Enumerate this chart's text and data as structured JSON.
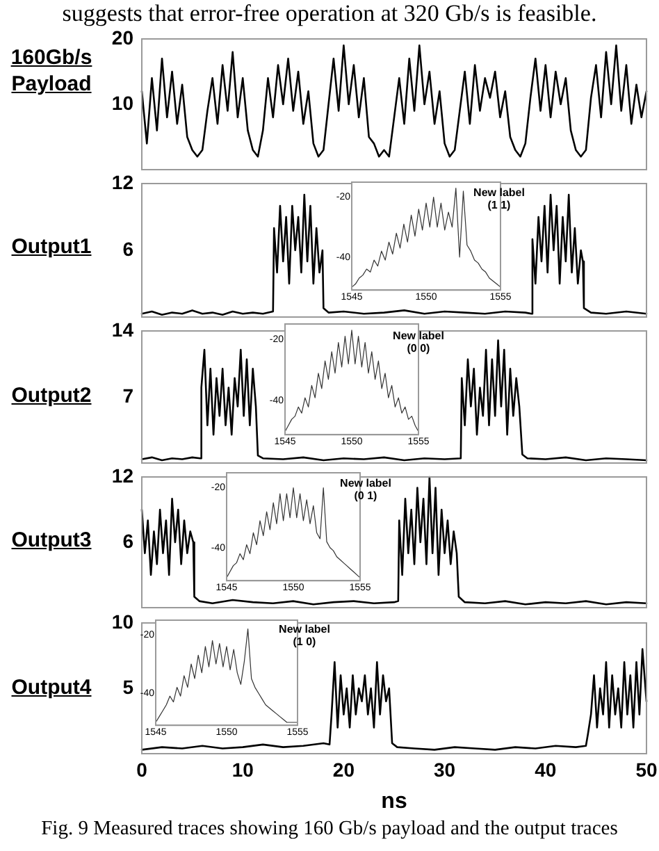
{
  "chart_data": [
    {
      "type": "line",
      "ylabel": "160Gb/s Payload",
      "annotations": [
        "suggests that error-free operation at 320 Gb/s is feasible."
      ],
      "xlim": [
        0,
        50
      ],
      "ylim": [
        0,
        20
      ],
      "yticks": [
        10,
        20
      ],
      "tick_labels": "y",
      "grid": false,
      "legend": false,
      "series": [
        {
          "color": "#000000",
          "x": [
            0,
            0.5,
            1,
            1.5,
            2,
            2.5,
            3,
            3.5,
            4,
            4.5,
            5,
            5.5,
            6,
            6.5,
            7,
            7.5,
            8,
            8.5,
            9,
            9.5,
            10,
            10.5,
            11,
            11.5,
            12,
            12.5,
            13,
            13.5,
            14,
            14.5,
            15,
            15.5,
            16,
            16.5,
            17,
            17.5,
            18,
            18.5,
            19,
            19.5,
            20,
            20.5,
            21,
            21.5,
            22,
            22.5,
            23,
            23.5,
            24,
            24.5,
            25,
            25.5,
            26,
            26.5,
            27,
            27.5,
            28,
            28.5,
            29,
            29.5,
            30,
            30.5,
            31,
            31.5,
            32,
            32.5,
            33,
            33.5,
            34,
            34.5,
            35,
            35.5,
            36,
            36.5,
            37,
            37.5,
            38,
            38.5,
            39,
            39.5,
            40,
            40.5,
            41,
            41.5,
            42,
            42.5,
            43,
            43.5,
            44,
            44.5,
            45,
            45.5,
            46,
            46.5,
            47,
            47.5,
            48,
            48.5,
            49,
            49.5,
            50
          ],
          "values": [
            12,
            4,
            14,
            6,
            17,
            8,
            15,
            7,
            13,
            5,
            3,
            2,
            3,
            9,
            14,
            7,
            16,
            9,
            18,
            8,
            14,
            6,
            3,
            2,
            6,
            14,
            8,
            16,
            10,
            17,
            9,
            15,
            7,
            12,
            4,
            2,
            3,
            10,
            17,
            9,
            19,
            10,
            16,
            8,
            14,
            5,
            4,
            2,
            3,
            2,
            8,
            14,
            7,
            17,
            9,
            19,
            10,
            15,
            7,
            12,
            4,
            2,
            3,
            9,
            15,
            7,
            16,
            9,
            14,
            11,
            15,
            8,
            12,
            5,
            3,
            2,
            4,
            11,
            17,
            9,
            16,
            8,
            15,
            10,
            14,
            6,
            3,
            2,
            3,
            11,
            16,
            8,
            18,
            10,
            19,
            9,
            16,
            7,
            13,
            8,
            12
          ]
        }
      ]
    },
    {
      "type": "line",
      "ylabel": "Output1",
      "xlim": [
        0,
        50
      ],
      "ylim": [
        0,
        12
      ],
      "yticks": [
        6,
        12
      ],
      "tick_labels": "y",
      "grid": false,
      "legend": false,
      "series": [
        {
          "color": "#000000",
          "x": [
            0,
            1,
            2,
            3,
            4,
            5,
            6,
            7,
            8,
            9,
            10,
            11,
            12,
            13,
            13.1,
            13.4,
            13.7,
            14,
            14.3,
            14.6,
            14.9,
            15.2,
            15.5,
            15.8,
            16.1,
            16.4,
            16.7,
            17,
            17.3,
            17.6,
            17.9,
            18,
            18.5,
            20,
            22,
            24,
            26,
            28,
            30,
            32,
            34,
            36,
            38,
            38.6,
            38.7,
            39,
            39.3,
            39.6,
            39.9,
            40.2,
            40.5,
            40.8,
            41.1,
            41.4,
            41.7,
            42,
            42.3,
            42.6,
            42.9,
            43.2,
            43.5,
            43.7,
            43.8,
            44.5,
            46,
            48,
            50
          ],
          "values": [
            0.3,
            0.5,
            0.2,
            0.4,
            0.3,
            0.6,
            0.3,
            0.4,
            0.2,
            0.5,
            0.3,
            0.4,
            0.3,
            0.5,
            8,
            4,
            10,
            5,
            9,
            3,
            10,
            6,
            9,
            4,
            11,
            5,
            10,
            3,
            8,
            4,
            6,
            0.8,
            0.4,
            0.5,
            0.3,
            0.4,
            0.6,
            0.3,
            0.5,
            0.4,
            0.3,
            0.5,
            0.4,
            0.3,
            7,
            3,
            9,
            5,
            10,
            4,
            11,
            6,
            10,
            3,
            9,
            5,
            11,
            4,
            8,
            3,
            6,
            5,
            0.8,
            0.4,
            0.3,
            0.5,
            0.3
          ]
        }
      ]
    },
    {
      "type": "line",
      "annotations": [
        "New label (1 1)"
      ],
      "xlim": [
        1545,
        1555
      ],
      "xticks": [
        1545,
        1550,
        1555
      ],
      "ylim": [
        -51,
        -15
      ],
      "yticks": [
        -20,
        -40
      ],
      "grid": false,
      "legend": false,
      "x": [
        1545,
        1545.25,
        1545.5,
        1545.75,
        1546,
        1546.25,
        1546.5,
        1546.75,
        1547,
        1547.25,
        1547.5,
        1547.75,
        1548,
        1548.25,
        1548.5,
        1548.75,
        1549,
        1549.25,
        1549.5,
        1549.75,
        1550,
        1550.25,
        1550.5,
        1550.75,
        1551,
        1551.25,
        1551.5,
        1551.75,
        1552,
        1552.25,
        1552.5,
        1552.75,
        1553,
        1553.25,
        1553.5,
        1553.75,
        1554,
        1554.25,
        1554.5,
        1554.75,
        1555
      ],
      "series": [
        {
          "color": "#333333",
          "values": [
            -50,
            -49,
            -47,
            -46,
            -44,
            -45,
            -41,
            -43,
            -38,
            -41,
            -35,
            -39,
            -32,
            -37,
            -29,
            -35,
            -26,
            -33,
            -24,
            -31,
            -22,
            -30,
            -20,
            -30,
            -22,
            -31,
            -25,
            -30,
            -17,
            -40,
            -18,
            -36,
            -38,
            -41,
            -42,
            -44,
            -45,
            -47,
            -48,
            -49,
            -50
          ]
        }
      ]
    },
    {
      "type": "line",
      "ylabel": "Output2",
      "xlim": [
        0,
        50
      ],
      "ylim": [
        0,
        14
      ],
      "yticks": [
        7,
        14
      ],
      "tick_labels": "y",
      "grid": false,
      "legend": false,
      "series": [
        {
          "color": "#000000",
          "x": [
            0,
            1,
            2,
            3,
            4,
            5,
            5.8,
            5.9,
            6.2,
            6.5,
            6.8,
            7.1,
            7.4,
            7.7,
            8,
            8.3,
            8.6,
            8.9,
            9.2,
            9.5,
            9.8,
            10.1,
            10.4,
            10.7,
            11,
            11.3,
            11.5,
            12,
            14,
            16,
            18,
            20,
            22,
            24,
            26,
            28,
            30,
            31.6,
            31.7,
            32,
            32.3,
            32.6,
            32.9,
            33.2,
            33.5,
            33.8,
            34.1,
            34.4,
            34.7,
            35,
            35.3,
            35.6,
            35.9,
            36.2,
            36.5,
            36.8,
            37.1,
            37.4,
            37.7,
            38.2,
            40,
            42,
            44,
            46,
            48,
            50
          ],
          "values": [
            0.4,
            0.6,
            0.3,
            0.5,
            0.4,
            0.6,
            0.5,
            8,
            12,
            4,
            10,
            3,
            9,
            5,
            10,
            4,
            8,
            3,
            9,
            6,
            12,
            5,
            11,
            4,
            10,
            6,
            0.8,
            0.5,
            0.4,
            0.6,
            0.3,
            0.5,
            0.4,
            0.6,
            0.3,
            0.5,
            0.4,
            0.5,
            9,
            4,
            11,
            6,
            10,
            3,
            8,
            5,
            12,
            4,
            11,
            5,
            13,
            6,
            12,
            3,
            10,
            5,
            9,
            6,
            0.9,
            0.5,
            0.4,
            0.6,
            0.3,
            0.5,
            0.4,
            0.3
          ]
        }
      ]
    },
    {
      "type": "line",
      "annotations": [
        "New label (0 0)"
      ],
      "xlim": [
        1545,
        1555
      ],
      "xticks": [
        1545,
        1550,
        1555
      ],
      "ylim": [
        -51,
        -15
      ],
      "yticks": [
        -20,
        -40
      ],
      "grid": false,
      "legend": false,
      "x": [
        1545,
        1545.25,
        1545.5,
        1545.75,
        1546,
        1546.25,
        1546.5,
        1546.75,
        1547,
        1547.25,
        1547.5,
        1547.75,
        1548,
        1548.25,
        1548.5,
        1548.75,
        1549,
        1549.25,
        1549.5,
        1549.75,
        1550,
        1550.25,
        1550.5,
        1550.75,
        1551,
        1551.25,
        1551.5,
        1551.75,
        1552,
        1552.25,
        1552.5,
        1552.75,
        1553,
        1553.25,
        1553.5,
        1553.75,
        1554,
        1554.25,
        1554.5,
        1554.75,
        1555
      ],
      "series": [
        {
          "color": "#333333",
          "values": [
            -50,
            -48,
            -46,
            -45,
            -42,
            -44,
            -39,
            -42,
            -35,
            -39,
            -31,
            -36,
            -27,
            -33,
            -24,
            -31,
            -21,
            -29,
            -19,
            -28,
            -17,
            -28,
            -19,
            -29,
            -21,
            -31,
            -24,
            -33,
            -27,
            -36,
            -31,
            -39,
            -35,
            -42,
            -39,
            -44,
            -42,
            -46,
            -45,
            -48,
            -50
          ]
        }
      ]
    },
    {
      "type": "line",
      "ylabel": "Output3",
      "xlim": [
        0,
        50
      ],
      "ylim": [
        0,
        12
      ],
      "yticks": [
        6,
        12
      ],
      "tick_labels": "y",
      "grid": false,
      "legend": false,
      "series": [
        {
          "color": "#000000",
          "x": [
            0,
            0.3,
            0.6,
            0.9,
            1.2,
            1.5,
            1.8,
            2.1,
            2.4,
            2.7,
            3,
            3.3,
            3.6,
            3.9,
            4.2,
            4.5,
            4.8,
            5.1,
            5.2,
            5.7,
            7,
            9,
            11,
            13,
            15,
            17,
            19,
            21,
            23,
            25,
            25.4,
            25.5,
            25.8,
            26.1,
            26.4,
            26.7,
            27,
            27.3,
            27.6,
            27.9,
            28.2,
            28.5,
            28.8,
            29.1,
            29.4,
            29.7,
            30,
            30.3,
            30.6,
            30.9,
            31.2,
            31.4,
            32,
            34,
            36,
            38,
            40,
            42,
            44,
            46,
            48,
            50
          ],
          "values": [
            9,
            5,
            8,
            3,
            7,
            4,
            9,
            5,
            8,
            3,
            10,
            6,
            9,
            4,
            8,
            5,
            7,
            6,
            1,
            0.6,
            0.4,
            0.7,
            0.5,
            0.4,
            0.6,
            0.3,
            0.5,
            0.6,
            0.4,
            0.5,
            0.6,
            8,
            3,
            10,
            5,
            9,
            4,
            11,
            6,
            10,
            4,
            12,
            5,
            11,
            3,
            9,
            5,
            8,
            4,
            7,
            5,
            1,
            0.5,
            0.4,
            0.6,
            0.3,
            0.5,
            0.4,
            0.6,
            0.3,
            0.5,
            0.4
          ]
        }
      ]
    },
    {
      "type": "line",
      "annotations": [
        "New label (0 1)"
      ],
      "xlim": [
        1545,
        1555
      ],
      "xticks": [
        1545,
        1550,
        1555
      ],
      "ylim": [
        -51,
        -15
      ],
      "yticks": [
        -20,
        -40
      ],
      "grid": false,
      "legend": false,
      "x": [
        1545,
        1545.25,
        1545.5,
        1545.75,
        1546,
        1546.25,
        1546.5,
        1546.75,
        1547,
        1547.25,
        1547.5,
        1547.75,
        1548,
        1548.25,
        1548.5,
        1548.75,
        1549,
        1549.25,
        1549.5,
        1549.75,
        1550,
        1550.25,
        1550.5,
        1550.75,
        1551,
        1551.25,
        1551.5,
        1551.75,
        1552,
        1552.25,
        1552.5,
        1552.75,
        1553,
        1553.25,
        1553.5,
        1553.75,
        1554,
        1554.25,
        1554.5,
        1554.75,
        1555
      ],
      "series": [
        {
          "color": "#333333",
          "values": [
            -50,
            -48,
            -46,
            -45,
            -42,
            -44,
            -39,
            -42,
            -35,
            -39,
            -31,
            -36,
            -28,
            -34,
            -25,
            -32,
            -22,
            -31,
            -22,
            -30,
            -20,
            -30,
            -22,
            -31,
            -24,
            -32,
            -26,
            -35,
            -37,
            -20,
            -38,
            -40,
            -41,
            -43,
            -44,
            -45,
            -46,
            -47,
            -48,
            -49,
            -50
          ]
        }
      ]
    },
    {
      "type": "line",
      "ylabel": "Output4",
      "xlabel": "ns",
      "annotations": [
        "Fig. 9 Measured traces showing 160 Gb/s payload and the output traces"
      ],
      "xlim": [
        0,
        50
      ],
      "xticks": [
        0,
        10,
        20,
        30,
        40,
        50
      ],
      "ylim": [
        0,
        10
      ],
      "yticks": [
        5,
        10
      ],
      "grid": false,
      "legend": false,
      "series": [
        {
          "color": "#000000",
          "x": [
            0,
            2,
            4,
            6,
            8,
            10,
            12,
            14,
            16,
            18,
            18.6,
            18.8,
            19.1,
            19.4,
            19.7,
            20,
            20.3,
            20.6,
            20.9,
            21.2,
            21.5,
            21.8,
            22.1,
            22.4,
            22.7,
            23,
            23.3,
            23.6,
            23.9,
            24.2,
            24.5,
            24.8,
            25.3,
            27,
            29,
            31,
            33,
            35,
            37,
            39,
            41,
            43,
            44,
            44.2,
            44.5,
            44.8,
            45.1,
            45.4,
            45.7,
            46,
            46.3,
            46.6,
            46.9,
            47.2,
            47.5,
            47.8,
            48.1,
            48.4,
            48.7,
            49,
            49.3,
            49.6,
            50
          ],
          "values": [
            0.3,
            0.5,
            0.4,
            0.6,
            0.4,
            0.5,
            0.7,
            0.5,
            0.6,
            0.8,
            0.7,
            3,
            7,
            2,
            6,
            3,
            5,
            2,
            6,
            3,
            5,
            4,
            6,
            3,
            5,
            2,
            7,
            3,
            6,
            4,
            5,
            0.8,
            0.5,
            0.4,
            0.3,
            0.5,
            0.4,
            0.3,
            0.5,
            0.4,
            0.6,
            0.5,
            0.6,
            1.5,
            3,
            6,
            2,
            5,
            3,
            7,
            2,
            6,
            3,
            5,
            2,
            7,
            3,
            6,
            2,
            7,
            3,
            8,
            4
          ]
        }
      ]
    },
    {
      "type": "line",
      "annotations": [
        "New label (1 0)"
      ],
      "xlim": [
        1545,
        1555
      ],
      "xticks": [
        1545,
        1550,
        1555
      ],
      "ylim": [
        -51,
        -15
      ],
      "yticks": [
        -20,
        -40
      ],
      "grid": false,
      "legend": false,
      "x": [
        1545,
        1545.25,
        1545.5,
        1545.75,
        1546,
        1546.25,
        1546.5,
        1546.75,
        1547,
        1547.25,
        1547.5,
        1547.75,
        1548,
        1548.25,
        1548.5,
        1548.75,
        1549,
        1549.25,
        1549.5,
        1549.75,
        1550,
        1550.25,
        1550.5,
        1550.75,
        1551,
        1551.25,
        1551.5,
        1551.75,
        1552,
        1552.25,
        1552.5,
        1552.75,
        1553,
        1553.25,
        1553.5,
        1553.75,
        1554,
        1554.25,
        1554.5,
        1554.75,
        1555
      ],
      "series": [
        {
          "color": "#333333",
          "values": [
            -50,
            -48,
            -46,
            -44,
            -41,
            -43,
            -38,
            -41,
            -34,
            -38,
            -30,
            -35,
            -27,
            -33,
            -24,
            -31,
            -22,
            -30,
            -23,
            -31,
            -24,
            -32,
            -25,
            -33,
            -37,
            -29,
            -18,
            -35,
            -38,
            -40,
            -42,
            -44,
            -45,
            -46,
            -47,
            -48,
            -49,
            -50,
            -50,
            -50,
            -50
          ]
        }
      ]
    }
  ]
}
